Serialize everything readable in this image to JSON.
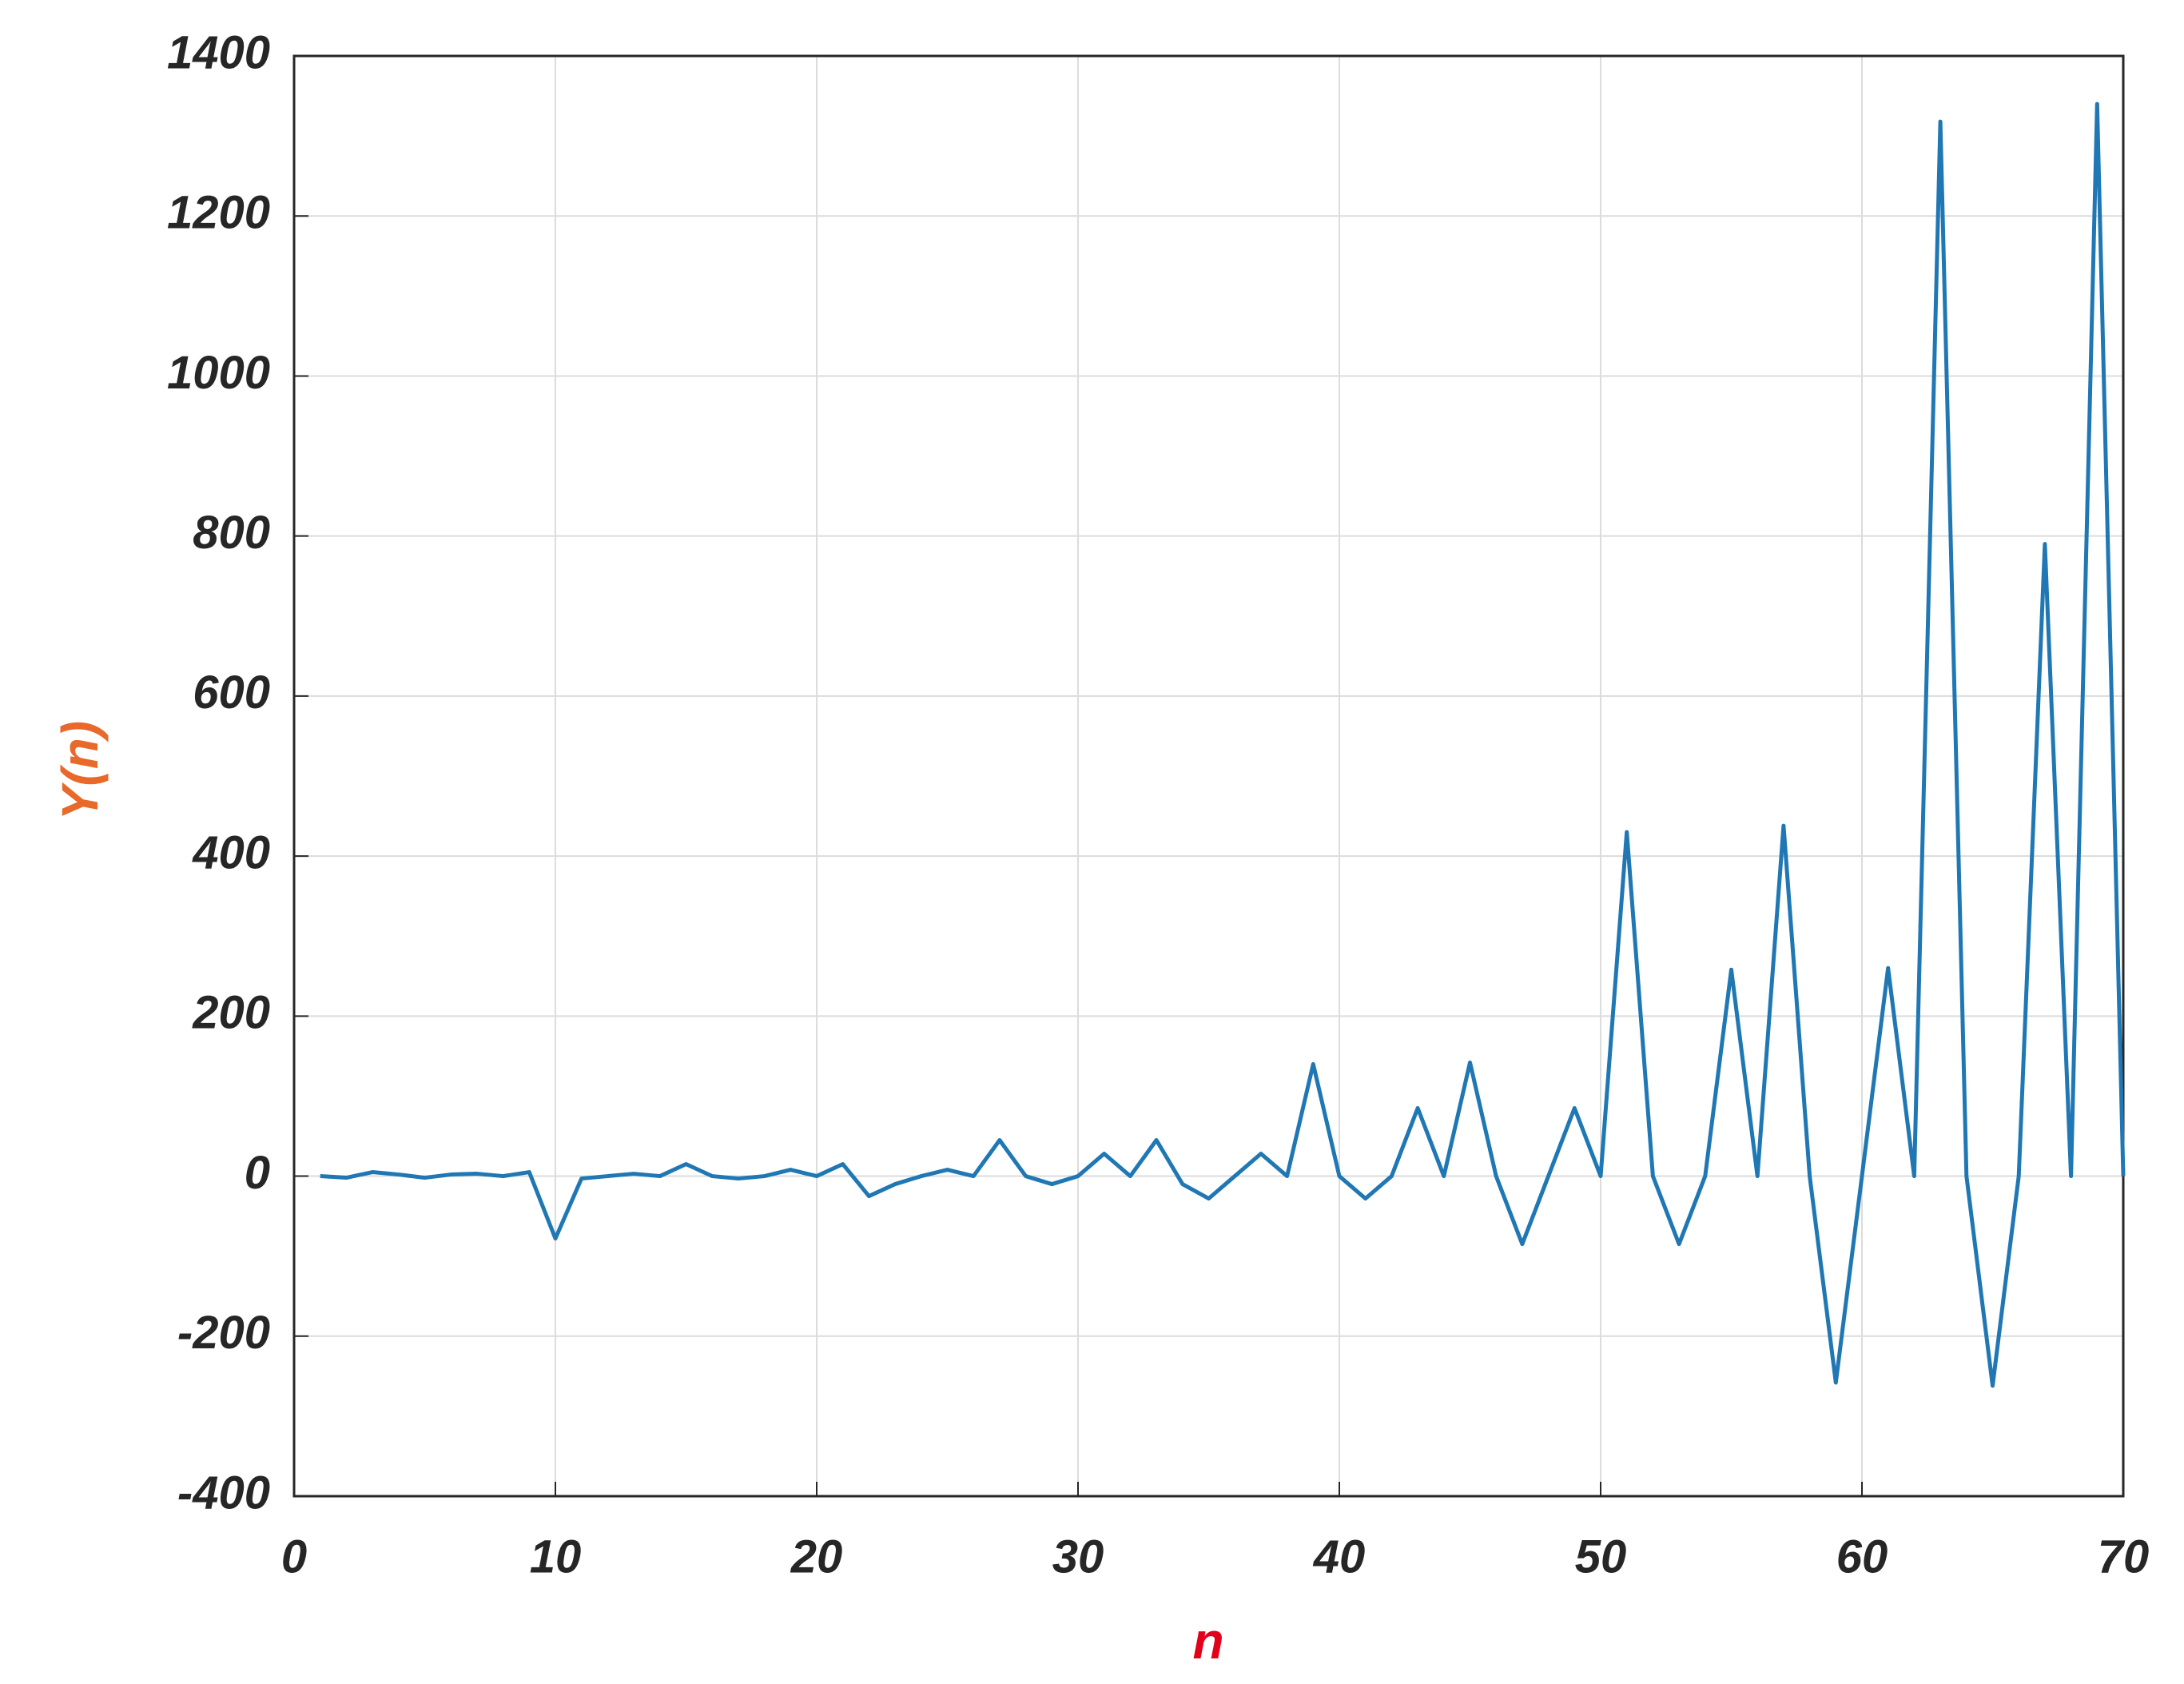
{
  "chart_data": {
    "type": "line",
    "x_label": "n",
    "y_label": "Y(n)",
    "x": [
      1,
      2,
      3,
      4,
      5,
      6,
      7,
      8,
      9,
      10,
      11,
      12,
      13,
      14,
      15,
      16,
      17,
      18,
      19,
      20,
      21,
      22,
      23,
      24,
      25,
      26,
      27,
      28,
      29,
      30,
      31,
      32,
      33,
      34,
      35,
      36,
      37,
      38,
      39,
      40,
      41,
      42,
      43,
      44,
      45,
      46,
      47,
      48,
      49,
      50,
      51,
      52,
      53,
      54,
      55,
      56,
      57,
      58,
      59,
      60,
      61,
      62,
      63,
      64,
      65,
      66,
      67,
      68,
      69,
      70
    ],
    "series": [
      {
        "color": "#1f77b4",
        "values": [
          0,
          -2,
          5,
          2,
          -2,
          2,
          3,
          0,
          5,
          -78,
          -3,
          0,
          3,
          0,
          15,
          0,
          -3,
          0,
          8,
          0,
          15,
          -25,
          -10,
          0,
          8,
          0,
          45,
          0,
          -10,
          0,
          28,
          0,
          45,
          -10,
          -28,
          0,
          28,
          0,
          140,
          0,
          -28,
          0,
          85,
          0,
          142,
          0,
          -85,
          0,
          85,
          0,
          430,
          0,
          -85,
          0,
          258,
          0,
          438,
          0,
          -258,
          0,
          260,
          0,
          1318,
          0,
          -262,
          0,
          790,
          0,
          1340,
          0
        ]
      }
    ],
    "xlim": [
      0,
      70
    ],
    "xticks": [
      0,
      10,
      20,
      30,
      40,
      50,
      60,
      70
    ],
    "ylim": [
      -400,
      1400
    ],
    "yticks": [
      -400,
      -200,
      0,
      200,
      400,
      600,
      800,
      1000,
      1200,
      1400
    ],
    "grid": true,
    "x_label_color": "#e3001b",
    "y_label_color": "#e8692a"
  }
}
